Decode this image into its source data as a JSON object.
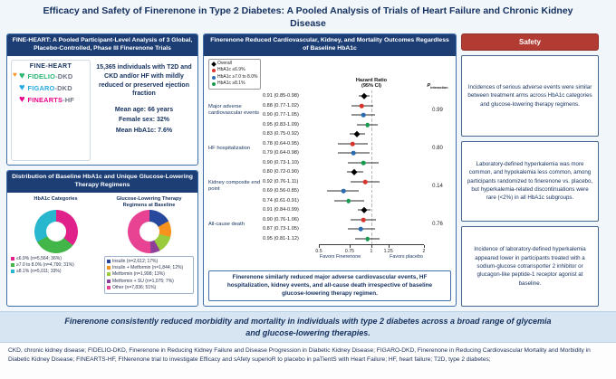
{
  "title": "Efficacy and Safety of Finerenone in Type 2 Diabetes: A Pooled Analysis of Trials of Heart Failure and Chronic Kidney Disease",
  "colors": {
    "navy_header": "#1c3e74",
    "panel_border": "#3f6fa8",
    "safety_red": "#b23b33",
    "banner_bg": "#d7e5f2"
  },
  "left_panel": {
    "trials_box": {
      "header": "FINE-HEART: A Pooled Participant-Level Analysis of 3 Global, Placebo-Controlled, Phase III Finerenone Trials",
      "logo_title": "FINE-HEART",
      "trials": [
        {
          "main": "FIDELIO",
          "suffix": "-DKD",
          "color": "#2bb673"
        },
        {
          "main": "FIGARO",
          "suffix": "-DKD",
          "color": "#27aae1"
        },
        {
          "main": "FINEARTS",
          "suffix": "-HF",
          "color": "#ec008c"
        }
      ],
      "population": "15,365 individuals with T2D and CKD and/or HF with mildly reduced or preserved ejection fraction",
      "stats": [
        "Mean age: 66 years",
        "Female sex: 32%",
        "Mean HbA1c: 7.6%"
      ]
    },
    "distribution_box": {
      "header": "Distribution of Baseline HbA1c and Unique Glucose-Lowering Therapy Regimens"
    }
  },
  "middle_panel": {
    "note": "Finerenone similarly reduced major adverse cardiovascular events, HF hospitalization, kidney events, and all-cause death irrespective of baseline glucose-lowering therapy regimen."
  },
  "safety": {
    "header": "Safety",
    "items": [
      "Incidences of serious adverse events were similar between treatment arms across HbA1c categories and glucose-lowering therapy regimens.",
      "Laboratory-defined hyperkalemia was more common, and hypokalemia less common, among participants randomized to finerenone vs. placebo, but hyperkalemia-related discontinuations were rare (<2%) in all HbA1c subgroups.",
      "Incidence of laboratory-defined hyperkalemia appeared lower in participants treated with a sodium-glucose cotransporter 2 inhibitor or glucagon-like peptide-1 receptor agonist at baseline."
    ]
  },
  "banner": "Finerenone consistently reduced morbidity and mortality in individuals with type 2 diabetes across a broad range of glycemia and glucose-lowering therapies.",
  "footer": "CKD, chronic kidney disease;  FIDELIO-DKD, Finerenone in Reducing Kidney Failure and Disease Progression in Diabetic Kidney Disease; FIGARO-DKD, Finerenone in Reducing Cardiovascular Mortality and Morbidity in Diabetic Kidney Disease; FINEARTS-HF, FINerenone trial to investigate Efficacy and sAfety superioR to placebo in paTientS with Heart Failure; HF, heart failure; T2D, type 2 diabetes;",
  "chart_data": [
    {
      "id": "forest",
      "type": "scatter",
      "title": "Finerenone Reduced Cardiovascular, Kidney, and Mortality Outcomes Regardless of Baseline HbA1c",
      "col_hr_line1": "Hazard Ratio",
      "col_hr_line2": "(95% CI)",
      "p_header_main": "P",
      "p_header_sub": "interaction",
      "xlim": [
        0.5,
        2
      ],
      "scale": "log",
      "x_ticks": [
        0.5,
        0.75,
        1,
        1.25,
        2
      ],
      "x_axis_left": "Favors Finerenone",
      "x_axis_right": "Favors placebo",
      "legend": [
        {
          "label": "Overall",
          "marker": "diamond",
          "color": "#000000"
        },
        {
          "label": "HbA1c ≤6.9%",
          "marker": "circle",
          "color": "#d9342b"
        },
        {
          "label": "HbA1c ≥7.0 to 8.0%",
          "marker": "circle",
          "color": "#2b6cb0"
        },
        {
          "label": "HbA1c ≥8.1%",
          "marker": "circle",
          "color": "#169c4f"
        }
      ],
      "outcomes": [
        {
          "label": "Major adverse cardiovascular events",
          "p_interaction": "0.99",
          "estimates": [
            {
              "group": "Overall",
              "text": "0.91 (0.85-0.98)",
              "hr": 0.91,
              "lo": 0.85,
              "hi": 0.98
            },
            {
              "group": "HbA1c ≤6.9%",
              "text": "0.88 (0.77-1.02)",
              "hr": 0.88,
              "lo": 0.77,
              "hi": 1.02
            },
            {
              "group": "HbA1c ≥7.0 to 8.0%",
              "text": "0.90 (0.77-1.05)",
              "hr": 0.9,
              "lo": 0.77,
              "hi": 1.05
            },
            {
              "group": "HbA1c ≥8.1%",
              "text": "0.95 (0.83-1.09)",
              "hr": 0.95,
              "lo": 0.83,
              "hi": 1.09
            }
          ]
        },
        {
          "label": "HF hospitalization",
          "p_interaction": "0.80",
          "estimates": [
            {
              "group": "Overall",
              "text": "0.83 (0.75-0.92)",
              "hr": 0.83,
              "lo": 0.75,
              "hi": 0.92
            },
            {
              "group": "HbA1c ≤6.9%",
              "text": "0.78 (0.64-0.95)",
              "hr": 0.78,
              "lo": 0.64,
              "hi": 0.95
            },
            {
              "group": "HbA1c ≥7.0 to 8.0%",
              "text": "0.79 (0.64-0.98)",
              "hr": 0.79,
              "lo": 0.64,
              "hi": 0.98
            },
            {
              "group": "HbA1c ≥8.1%",
              "text": "0.90 (0.73-1.10)",
              "hr": 0.9,
              "lo": 0.73,
              "hi": 1.1
            }
          ]
        },
        {
          "label": "Kidney composite end point",
          "p_interaction": "0.14",
          "estimates": [
            {
              "group": "Overall",
              "text": "0.80 (0.72-0.90)",
              "hr": 0.8,
              "lo": 0.72,
              "hi": 0.9
            },
            {
              "group": "HbA1c ≤6.9%",
              "text": "0.92 (0.76-1.11)",
              "hr": 0.92,
              "lo": 0.76,
              "hi": 1.11
            },
            {
              "group": "HbA1c ≥7.0 to 8.0%",
              "text": "0.69 (0.56-0.85)",
              "hr": 0.69,
              "lo": 0.56,
              "hi": 0.85
            },
            {
              "group": "HbA1c ≥8.1%",
              "text": "0.74 (0.61-0.91)",
              "hr": 0.74,
              "lo": 0.61,
              "hi": 0.91
            }
          ]
        },
        {
          "label": "All-cause death",
          "p_interaction": "0.76",
          "estimates": [
            {
              "group": "Overall",
              "text": "0.91 (0.84-0.99)",
              "hr": 0.91,
              "lo": 0.84,
              "hi": 0.99
            },
            {
              "group": "HbA1c ≤6.9%",
              "text": "0.90 (0.76-1.06)",
              "hr": 0.9,
              "lo": 0.76,
              "hi": 1.06
            },
            {
              "group": "HbA1c ≥7.0 to 8.0%",
              "text": "0.87 (0.73-1.05)",
              "hr": 0.87,
              "lo": 0.73,
              "hi": 1.05
            },
            {
              "group": "HbA1c ≥8.1%",
              "text": "0.95 (0.81-1.12)",
              "hr": 0.95,
              "lo": 0.81,
              "hi": 1.12
            }
          ]
        }
      ]
    },
    {
      "id": "hba1c_donut",
      "type": "pie",
      "title": "HbA1c Categories",
      "slices": [
        {
          "label": "≤6.9% (n=5,564; 36%)",
          "value": 36,
          "color": "#e0218a"
        },
        {
          "label": "≥7.0 to 8.0% (n=4,790; 31%)",
          "value": 31,
          "color": "#43b649"
        },
        {
          "label": "≥8.1% (n=5,011; 33%)",
          "value": 33,
          "color": "#29b7cf"
        }
      ]
    },
    {
      "id": "therapy_donut",
      "type": "pie",
      "title": "Glucose-Lowering Therapy Regimens at Baseline",
      "slices": [
        {
          "label": "Insulin (n=2,612; 17%)",
          "value": 17,
          "color": "#27489c"
        },
        {
          "label": "Insulin + Metformin (n=1,844; 12%)",
          "value": 12,
          "color": "#f6921e"
        },
        {
          "label": "Metformin (n=1,998; 13%)",
          "value": 13,
          "color": "#9acb3c"
        },
        {
          "label": "Metformin + SU (n=1,075; 7%)",
          "value": 7,
          "color": "#8e3f97"
        },
        {
          "label": "Other (n=7,836; 51%)",
          "value": 51,
          "color": "#e84393"
        }
      ]
    }
  ]
}
